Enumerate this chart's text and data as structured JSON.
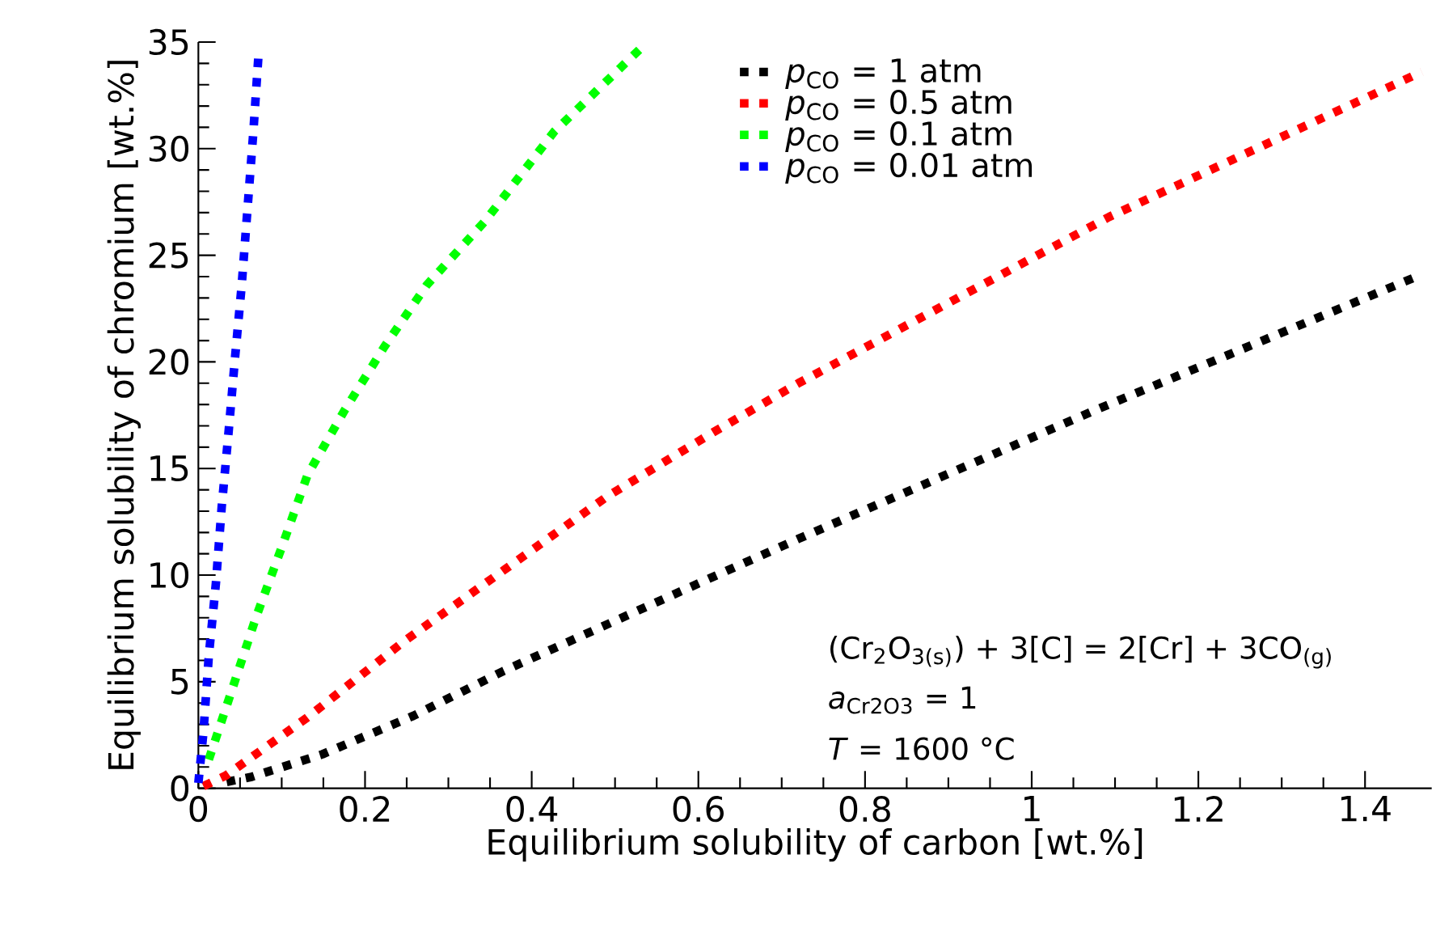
{
  "chart_data": {
    "type": "line",
    "xlabel": "Equilibrium solubility of carbon [wt.%]",
    "ylabel": "Equilibrium solubility of chromium [wt.%]",
    "xlim": [
      0,
      1.48
    ],
    "ylim": [
      0,
      35
    ],
    "xticks": [
      0,
      0.2,
      0.4,
      0.6,
      0.8,
      1,
      1.2,
      1.4
    ],
    "yticks": [
      0,
      5,
      10,
      15,
      20,
      25,
      30,
      35
    ],
    "legend": "top right",
    "line_style": "dotted",
    "marker": "none",
    "grid": false,
    "annotations": [
      "(Cr$_{2}$O$_{3(s)}$) + 3[C] = 2[Cr] + 3CO$_{(g)}$",
      "*a*$_{Cr2O3}$ = 1",
      "*T* = 1600 °C"
    ],
    "series": [
      {
        "name": "*p*$_{CO}$ = 1 atm",
        "color": "#000000",
        "x": [
          0.034,
          0.064,
          0.149,
          0.258,
          0.366,
          0.474,
          0.611,
          0.72,
          1.074,
          1.462
        ],
        "values": [
          0.3,
          0.54,
          1.6,
          3.4,
          5.5,
          7.4,
          9.8,
          11.7,
          17.7,
          24.0
        ]
      },
      {
        "name": "*p*$_{CO}$ = 0.5 atm",
        "color": "#ff0000",
        "x": [
          0.006,
          0.033,
          0.13,
          0.247,
          0.369,
          0.491,
          0.618,
          0.72,
          1.093,
          1.468
        ],
        "values": [
          0.1,
          0.6,
          3.3,
          6.9,
          10.3,
          13.7,
          16.7,
          19.0,
          26.8,
          33.6
        ]
      },
      {
        "name": "*p*$_{CO}$ = 0.1 atm",
        "color": "#00ff00",
        "x": [
          0.0125,
          0.041,
          0.069,
          0.1,
          0.131,
          0.175,
          0.223,
          0.274,
          0.344,
          0.427,
          0.536
        ],
        "values": [
          1.35,
          4.7,
          8.0,
          11.3,
          14.7,
          17.7,
          20.7,
          23.6,
          26.6,
          30.8,
          34.9
        ]
      },
      {
        "name": "*p*$_{CO}$ = 0.01 atm",
        "color": "#0000ff",
        "x": [
          0,
          0.006,
          0.0125,
          0.021,
          0.028,
          0.036,
          0.044,
          0.052,
          0.059,
          0.066,
          0.072
        ],
        "values": [
          0.25,
          2.6,
          6.2,
          9.6,
          13.2,
          16.6,
          20.2,
          23.6,
          27.2,
          30.8,
          34.3
        ]
      }
    ]
  }
}
